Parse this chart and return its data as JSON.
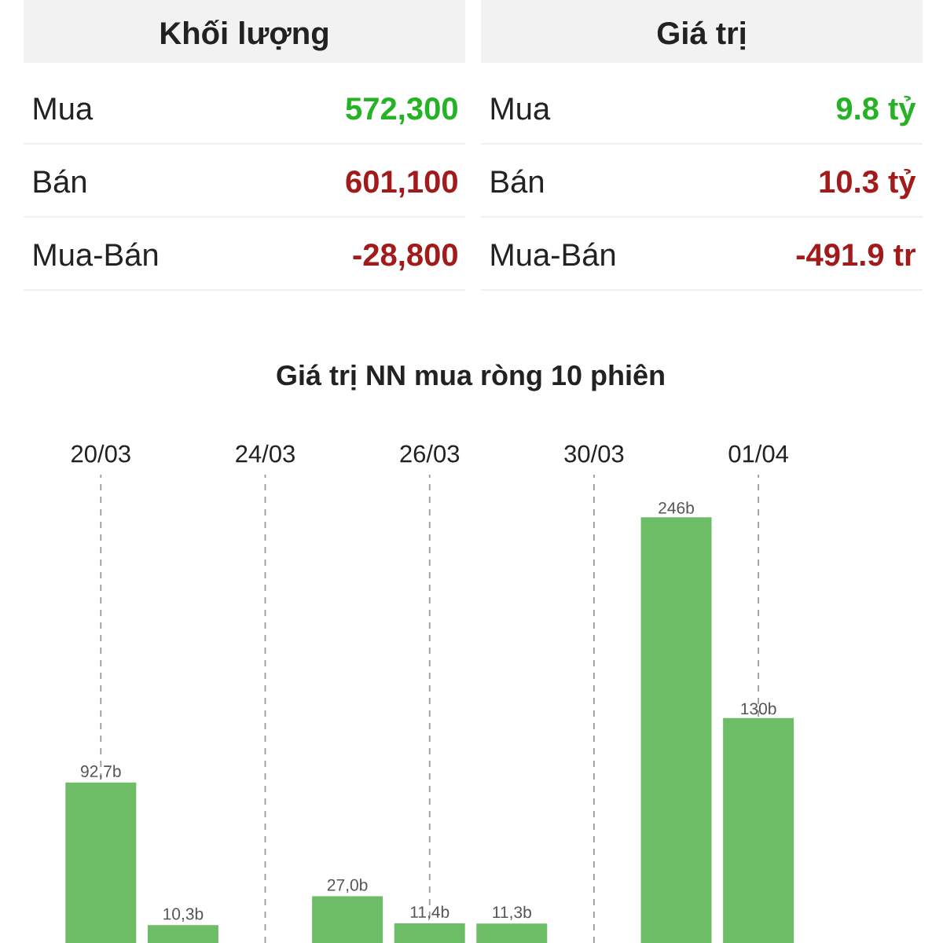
{
  "chart_data": [
    {
      "type": "other",
      "title": "Khối lượng",
      "categories": [
        "Mua",
        "Bán",
        "Mua-Bán"
      ],
      "value_labels": [
        "572,300",
        "601,100",
        "-28,800"
      ],
      "colors": [
        "#25b225",
        "#a31a1a",
        "#a31a1a"
      ]
    },
    {
      "type": "other",
      "title": "Giá trị",
      "categories": [
        "Mua",
        "Bán",
        "Mua-Bán"
      ],
      "value_labels": [
        "9.8 tỷ",
        "10.3 tỷ",
        "-491.9 tr"
      ],
      "colors": [
        "#25b225",
        "#a31a1a",
        "#a31a1a"
      ]
    },
    {
      "type": "bar",
      "title": "Giá trị NN mua ròng 10 phiên",
      "categories": [
        "20/03",
        null,
        "24/03",
        null,
        "26/03",
        null,
        "30/03",
        null,
        "01/04",
        null
      ],
      "values": [
        92.7,
        10.3,
        null,
        27.0,
        11.4,
        11.3,
        null,
        246,
        130,
        null
      ],
      "value_labels": [
        "92,7b",
        "10,3b",
        null,
        "27,0b",
        "11,4b",
        "11,3b",
        null,
        "246b",
        "130b",
        null
      ],
      "color": "#6cbd66",
      "grid": "x"
    }
  ]
}
